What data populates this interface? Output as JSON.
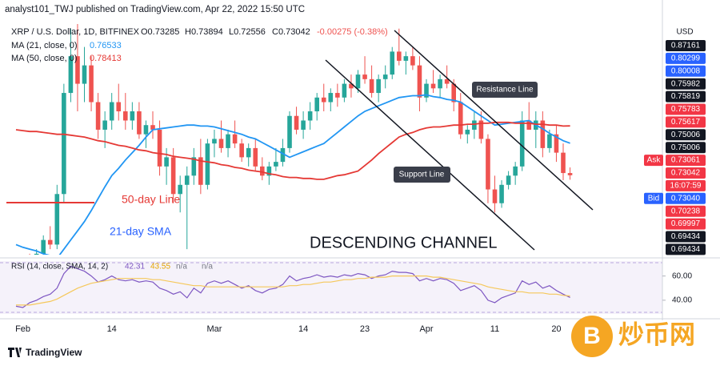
{
  "chart_data": {
    "type": "candlestick",
    "header": "analyst101_TWJ published on TradingView.com, Apr 22, 2022 15:50 UTC",
    "title": "XRP / U.S. Dollar, 1D, BITFINEX",
    "ohlc_legend": [
      "O0.73285",
      "H0.73894",
      "L0.72556",
      "C0.73042",
      "-0.00275 (-0.38%)"
    ],
    "categories": [
      null,
      "Feb",
      null,
      null,
      null,
      null,
      null,
      null,
      null,
      null,
      null,
      null,
      null,
      null,
      "14",
      null,
      null,
      null,
      null,
      null,
      null,
      null,
      null,
      null,
      null,
      null,
      null,
      null,
      null,
      "Mar",
      null,
      null,
      null,
      null,
      null,
      null,
      null,
      null,
      null,
      null,
      null,
      null,
      "14",
      null,
      null,
      null,
      null,
      null,
      null,
      null,
      null,
      "23",
      null,
      null,
      null,
      null,
      null,
      null,
      null,
      null,
      "Apr",
      null,
      null,
      null,
      null,
      null,
      null,
      null,
      null,
      null,
      "11",
      null,
      null,
      null,
      null,
      null,
      null,
      null,
      null,
      "20",
      null,
      null
    ],
    "ohlc": {
      "open": [
        0.62,
        0.615,
        0.635,
        0.62,
        0.645,
        0.66,
        0.655,
        0.71,
        0.82,
        0.86,
        0.83,
        0.85,
        0.81,
        0.78,
        0.79,
        0.81,
        0.8,
        0.79,
        0.8,
        0.775,
        0.785,
        0.78,
        0.74,
        0.75,
        0.71,
        0.72,
        0.73,
        0.75,
        0.72,
        0.765,
        0.77,
        0.76,
        0.775,
        0.765,
        0.75,
        0.76,
        0.74,
        0.73,
        0.74,
        0.745,
        0.76,
        0.795,
        0.78,
        0.79,
        0.8,
        0.815,
        0.81,
        0.82,
        0.815,
        0.83,
        0.825,
        0.84,
        0.835,
        0.82,
        0.835,
        0.84,
        0.865,
        0.855,
        0.86,
        0.85,
        0.815,
        0.83,
        0.825,
        0.835,
        0.83,
        0.81,
        0.775,
        0.78,
        0.79,
        0.77,
        0.715,
        0.7,
        0.72,
        0.73,
        0.74,
        0.79,
        0.78,
        0.79,
        0.76,
        0.775,
        0.755,
        0.73285
      ],
      "high": [
        0.63,
        0.64,
        0.645,
        0.65,
        0.665,
        0.675,
        0.72,
        0.83,
        0.89,
        0.91,
        0.87,
        0.86,
        0.82,
        0.8,
        0.82,
        0.83,
        0.82,
        0.81,
        0.81,
        0.79,
        0.8,
        0.79,
        0.76,
        0.76,
        0.73,
        0.74,
        0.76,
        0.77,
        0.77,
        0.78,
        0.79,
        0.78,
        0.79,
        0.77,
        0.765,
        0.77,
        0.75,
        0.745,
        0.76,
        0.77,
        0.8,
        0.805,
        0.8,
        0.81,
        0.82,
        0.83,
        0.825,
        0.83,
        0.835,
        0.84,
        0.845,
        0.86,
        0.85,
        0.84,
        0.85,
        0.87,
        0.89,
        0.865,
        0.87,
        0.86,
        0.835,
        0.845,
        0.84,
        0.85,
        0.835,
        0.82,
        0.785,
        0.8,
        0.8,
        0.775,
        0.73,
        0.725,
        0.735,
        0.745,
        0.8,
        0.81,
        0.8,
        0.8,
        0.78,
        0.785,
        0.765,
        0.73894
      ],
      "low": [
        0.605,
        0.61,
        0.615,
        0.615,
        0.64,
        0.65,
        0.65,
        0.7,
        0.81,
        0.8,
        0.81,
        0.8,
        0.77,
        0.76,
        0.78,
        0.79,
        0.78,
        0.78,
        0.77,
        0.76,
        0.77,
        0.73,
        0.72,
        0.7,
        0.69,
        0.65,
        0.72,
        0.71,
        0.715,
        0.75,
        0.755,
        0.75,
        0.76,
        0.745,
        0.74,
        0.735,
        0.725,
        0.72,
        0.735,
        0.74,
        0.755,
        0.775,
        0.77,
        0.78,
        0.79,
        0.8,
        0.8,
        0.805,
        0.81,
        0.815,
        0.82,
        0.83,
        0.815,
        0.81,
        0.825,
        0.835,
        0.85,
        0.84,
        0.845,
        0.8,
        0.81,
        0.82,
        0.815,
        0.825,
        0.8,
        0.77,
        0.765,
        0.77,
        0.765,
        0.7,
        0.69,
        0.695,
        0.715,
        0.72,
        0.735,
        0.78,
        0.76,
        0.75,
        0.755,
        0.745,
        0.725,
        0.72556
      ],
      "close": [
        0.615,
        0.635,
        0.62,
        0.645,
        0.66,
        0.655,
        0.71,
        0.82,
        0.86,
        0.83,
        0.85,
        0.81,
        0.78,
        0.79,
        0.81,
        0.8,
        0.79,
        0.8,
        0.775,
        0.785,
        0.78,
        0.74,
        0.75,
        0.71,
        0.72,
        0.73,
        0.75,
        0.72,
        0.765,
        0.77,
        0.76,
        0.775,
        0.765,
        0.75,
        0.76,
        0.74,
        0.73,
        0.74,
        0.745,
        0.76,
        0.795,
        0.78,
        0.79,
        0.8,
        0.815,
        0.81,
        0.82,
        0.815,
        0.83,
        0.825,
        0.84,
        0.835,
        0.82,
        0.835,
        0.84,
        0.865,
        0.855,
        0.86,
        0.85,
        0.815,
        0.83,
        0.825,
        0.835,
        0.83,
        0.81,
        0.775,
        0.78,
        0.79,
        0.77,
        0.715,
        0.7,
        0.72,
        0.73,
        0.74,
        0.79,
        0.78,
        0.79,
        0.76,
        0.775,
        0.755,
        0.73285,
        0.73042
      ],
      "up_color": "#26a69a",
      "down_color": "#ef5350"
    },
    "series": [
      {
        "name": "MA (21, close, 0)",
        "label": "0.76533",
        "color": "#2196f3",
        "values": [
          0.655,
          0.652,
          0.65,
          0.648,
          0.645,
          0.643,
          0.64,
          0.65,
          0.66,
          0.67,
          0.68,
          0.692,
          0.705,
          0.718,
          0.73,
          0.738,
          0.747,
          0.755,
          0.763,
          0.772,
          0.78,
          0.781,
          0.782,
          0.783,
          0.784,
          0.785,
          0.785,
          0.784,
          0.784,
          0.783,
          0.781,
          0.779,
          0.777,
          0.775,
          0.772,
          0.77,
          0.766,
          0.762,
          0.758,
          0.754,
          0.75,
          0.753,
          0.756,
          0.759,
          0.762,
          0.765,
          0.771,
          0.777,
          0.783,
          0.789,
          0.795,
          0.8,
          0.803,
          0.806,
          0.809,
          0.812,
          0.815,
          0.816,
          0.817,
          0.817,
          0.818,
          0.816,
          0.815,
          0.813,
          0.812,
          0.81,
          0.805,
          0.8,
          0.795,
          0.79,
          0.785,
          0.786,
          0.787,
          0.788,
          0.789,
          0.79,
          0.785,
          0.781,
          0.776,
          0.772,
          0.768,
          0.76533
        ]
      },
      {
        "name": "MA (50, close, 0)",
        "label": "0.78413",
        "color": "#e53935",
        "values": [
          0.78,
          0.779,
          0.778,
          0.778,
          0.777,
          0.776,
          0.775,
          0.775,
          0.774,
          0.773,
          0.772,
          0.77,
          0.768,
          0.767,
          0.765,
          0.763,
          0.762,
          0.76,
          0.758,
          0.757,
          0.755,
          0.754,
          0.753,
          0.751,
          0.75,
          0.749,
          0.748,
          0.746,
          0.745,
          0.744,
          0.742,
          0.741,
          0.739,
          0.738,
          0.736,
          0.735,
          0.734,
          0.732,
          0.731,
          0.729,
          0.728,
          0.728,
          0.727,
          0.727,
          0.726,
          0.726,
          0.728,
          0.73,
          0.731,
          0.733,
          0.735,
          0.741,
          0.747,
          0.754,
          0.76,
          0.766,
          0.772,
          0.775,
          0.777,
          0.78,
          0.782,
          0.783,
          0.783,
          0.784,
          0.785,
          0.785,
          0.786,
          0.786,
          0.787,
          0.787,
          0.788,
          0.788,
          0.788,
          0.787,
          0.787,
          0.787,
          0.786,
          0.786,
          0.785,
          0.785,
          0.784,
          0.78413
        ]
      }
    ],
    "ylim": [
      0.644,
      0.895
    ],
    "price_scale_label": "USD",
    "price_tags": [
      {
        "text": "0.87161",
        "color": "#131722"
      },
      {
        "text": "0.80299",
        "color": "#2962ff"
      },
      {
        "text": "0.80008",
        "color": "#2962ff"
      },
      {
        "text": "0.75982",
        "color": "#131722"
      },
      {
        "text": "0.75819",
        "color": "#131722"
      },
      {
        "text": "0.75783",
        "color": "#f23645"
      },
      {
        "text": "0.75617",
        "color": "#f23645"
      },
      {
        "text": "0.75006",
        "color": "#131722"
      },
      {
        "text": "0.75006",
        "color": "#131722"
      },
      {
        "side": "Ask",
        "text": "0.73061",
        "color": "#f23645"
      },
      {
        "text": "0.73042",
        "color": "#f23645"
      },
      {
        "text": "16:07:59",
        "color": "#f23645"
      },
      {
        "side": "Bid",
        "text": "0.73040",
        "color": "#2962ff"
      },
      {
        "text": "0.70238",
        "color": "#f23645"
      },
      {
        "text": "0.69997",
        "color": "#f23645"
      },
      {
        "text": "0.69434",
        "color": "#131722"
      },
      {
        "text": "0.69434",
        "color": "#131722"
      }
    ],
    "annotations": {
      "resistance": "Resistance Line",
      "support": "Support Line",
      "ma50": "50-day Line",
      "ma21": "21-day SMA",
      "channel": "DESCENDING CHANNEL"
    },
    "rsi": {
      "legend": "RSI (14, close, SMA, 14, 2)",
      "labels": [
        "42.31",
        "43.55",
        "n/a",
        "n/a"
      ],
      "series": [
        {
          "name": "RSI",
          "color": "#7e57c2",
          "values": [
            35,
            34,
            38,
            40,
            43,
            45,
            50,
            62,
            68,
            66,
            64,
            60,
            55,
            57,
            60,
            57,
            56,
            57,
            55,
            56,
            55,
            50,
            48,
            45,
            47,
            42,
            50,
            46,
            54,
            56,
            54,
            56,
            53,
            50,
            52,
            48,
            46,
            49,
            50,
            53,
            60,
            56,
            58,
            59,
            61,
            59,
            60,
            59,
            61,
            60,
            62,
            61,
            58,
            60,
            61,
            64,
            63,
            63,
            62,
            56,
            58,
            56,
            58,
            57,
            54,
            48,
            50,
            52,
            48,
            40,
            38,
            42,
            44,
            46,
            56,
            53,
            55,
            50,
            52,
            48,
            45,
            42.31
          ]
        },
        {
          "name": "RSI SMA",
          "color": "#f5c85b",
          "values": [
            36,
            36,
            36,
            37,
            38,
            39,
            41,
            44,
            47,
            50,
            52,
            54,
            55,
            56,
            57,
            58,
            58,
            58,
            58,
            58,
            57,
            57,
            56,
            55,
            54,
            53,
            52,
            52,
            51,
            51,
            51,
            51,
            51,
            51,
            51,
            51,
            51,
            51,
            51,
            51,
            52,
            52,
            53,
            53,
            54,
            55,
            55,
            56,
            57,
            57,
            58,
            58,
            59,
            59,
            59,
            60,
            60,
            60,
            60,
            60,
            60,
            59,
            59,
            58,
            57,
            56,
            55,
            54,
            53,
            51,
            50,
            49,
            48,
            47,
            47,
            46,
            46,
            46,
            45,
            45,
            44,
            43.55
          ]
        }
      ],
      "ylim": [
        30,
        71
      ],
      "yticks": [
        {
          "value": 40,
          "label": "40.00"
        },
        {
          "value": 60,
          "label": "60.00"
        }
      ]
    },
    "footer": "TradingView",
    "watermark": "炒币网"
  }
}
